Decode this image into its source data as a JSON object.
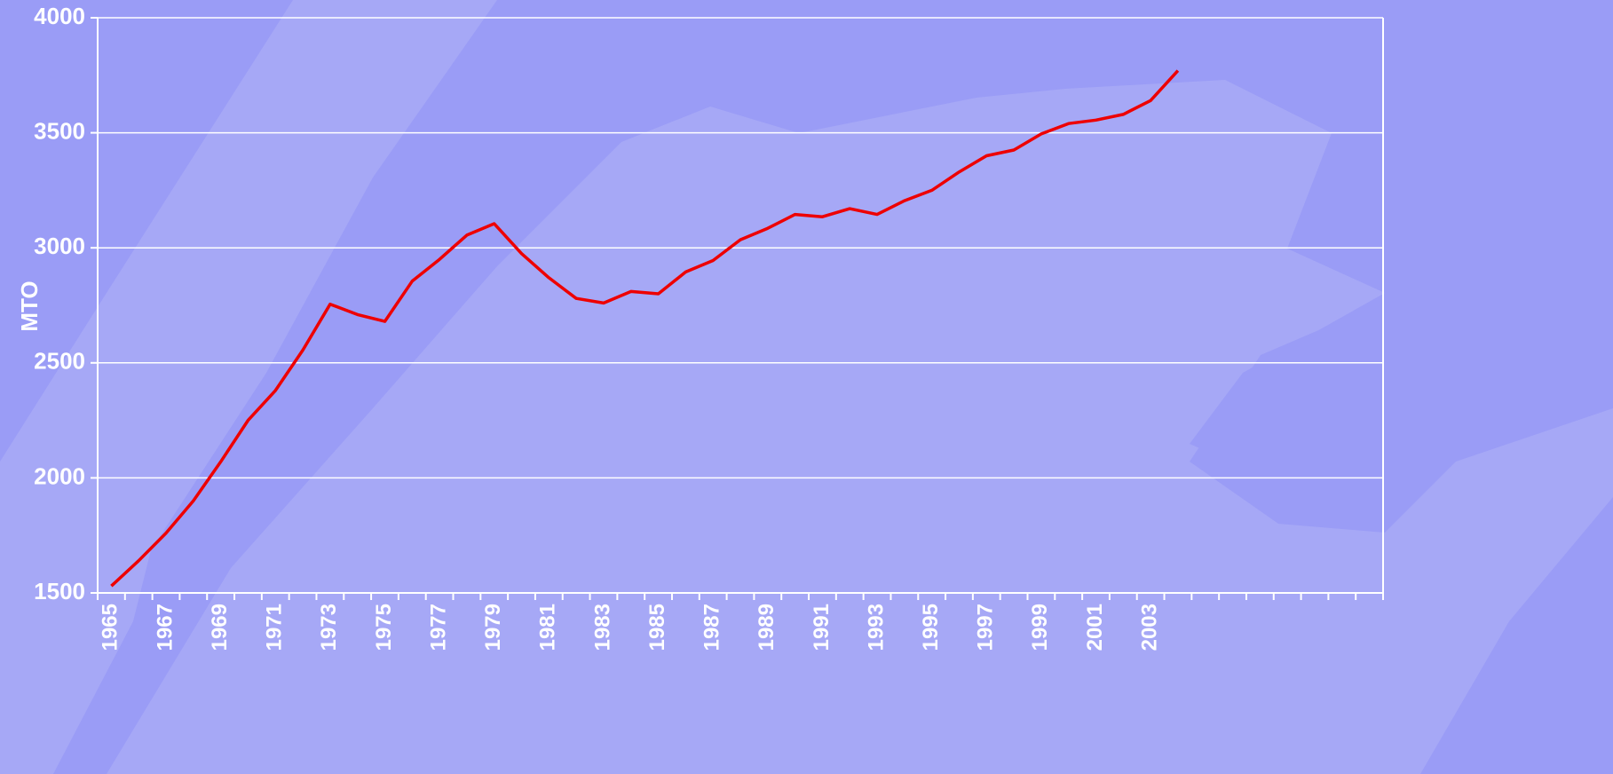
{
  "chart_data": {
    "type": "line",
    "y_label": "MTO",
    "categories": [
      "1965",
      null,
      "1967",
      null,
      "1969",
      null,
      "1971",
      null,
      "1973",
      null,
      "1975",
      null,
      "1977",
      null,
      "1979",
      null,
      "1981",
      null,
      "1983",
      null,
      "1985",
      null,
      "1987",
      null,
      "1989",
      null,
      "1991",
      null,
      "1993",
      null,
      "1995",
      null,
      "1997",
      null,
      "1999",
      null,
      "2001",
      null,
      "2003",
      null,
      null,
      null,
      null,
      null,
      null,
      null,
      null
    ],
    "series": [
      {
        "name": null,
        "color": "#ee0000",
        "values": [
          1530,
          1640,
          1760,
          1900,
          2070,
          2250,
          2380,
          2555,
          2755,
          2710,
          2680,
          2855,
          2950,
          3055,
          3105,
          2975,
          2870,
          2780,
          2760,
          2810,
          2800,
          2895,
          2945,
          3035,
          3085,
          3145,
          3135,
          3170,
          3145,
          3205,
          3250,
          3330,
          3400,
          3425,
          3495,
          3540,
          3555,
          3580,
          3640,
          3770,
          null,
          null,
          null,
          null,
          null,
          null,
          null
        ]
      }
    ],
    "ylim": [
      1500,
      4000
    ],
    "yticks": [
      1500,
      2000,
      2500,
      3000,
      3500,
      4000
    ],
    "grid": true
  }
}
